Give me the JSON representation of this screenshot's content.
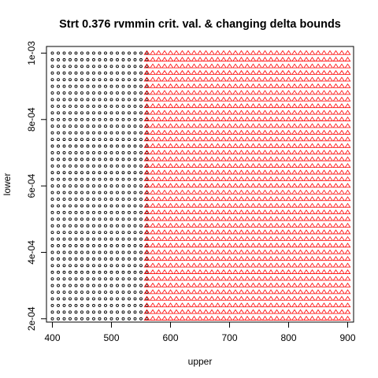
{
  "chart_data": {
    "type": "scatter",
    "title": "Strt 0.376 rvmmin crit. val. & changing delta bounds",
    "xlabel": "upper",
    "ylabel": "lower",
    "xlim": [
      390,
      910
    ],
    "ylim": [
      0.00019,
      0.00102
    ],
    "x_ticks": [
      400,
      500,
      600,
      700,
      800,
      900
    ],
    "x_tick_labels": [
      "400",
      "500",
      "600",
      "700",
      "800",
      "900"
    ],
    "y_ticks": [
      0.0002,
      0.0004,
      0.0006,
      0.0008,
      0.001
    ],
    "y_tick_labels": [
      "2e-04",
      "4e-04",
      "6e-04",
      "8e-04",
      "1e-03"
    ],
    "grid": false,
    "legend": "none",
    "series": [
      {
        "marker": "circle",
        "color": "#000000",
        "x": {
          "start": 400,
          "end": 555,
          "step": 10
        },
        "y": {
          "start": 0.0002,
          "end": 0.001,
          "step": 2e-05
        }
      },
      {
        "marker": "triangle",
        "color": "#ff0000",
        "x": {
          "start": 560,
          "end": 900,
          "step": 10
        },
        "y": {
          "start": 0.0002,
          "end": 0.001,
          "step": 2e-05
        }
      }
    ]
  }
}
